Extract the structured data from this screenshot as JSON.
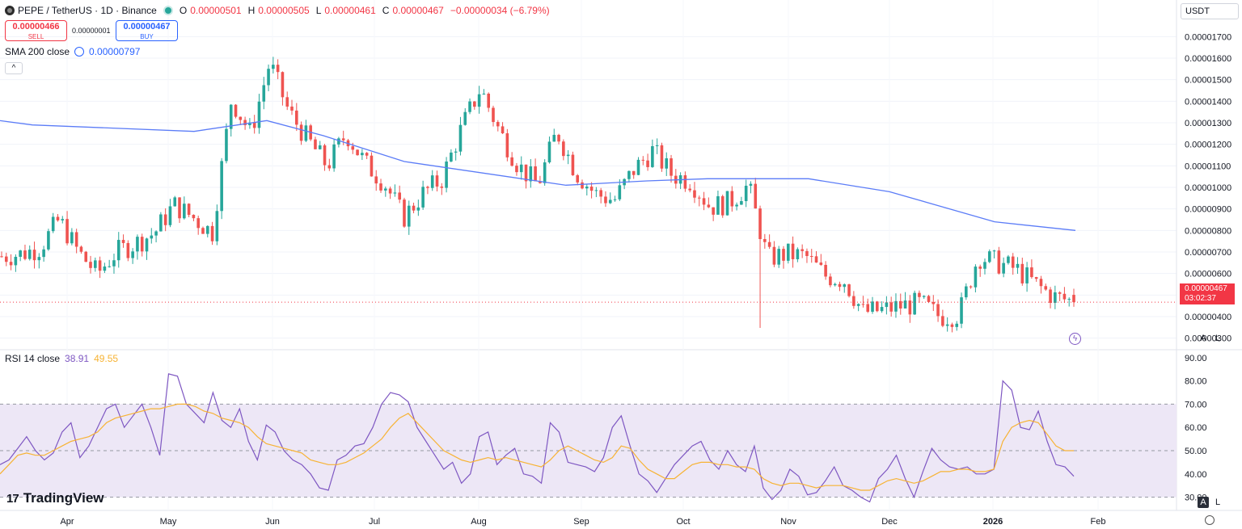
{
  "header": {
    "symbol": "PEPE / TetherUS · 1D · Binance",
    "open_label": "O",
    "open": "0.00000501",
    "high_label": "H",
    "high": "0.00000505",
    "low_label": "L",
    "low": "0.00000461",
    "close_label": "C",
    "close": "0.00000467",
    "change": "−0.00000034 (−6.79%)"
  },
  "trade": {
    "sell_price": "0.00000466",
    "sell_label": "SELL",
    "spread": "0.00000001",
    "buy_price": "0.00000467",
    "buy_label": "BUY"
  },
  "indicators": {
    "sma_label": "SMA 200 close",
    "sma_value": "0.00000797",
    "rsi_label": "RSI 14 close",
    "rsi_value": "38.91",
    "rsi_ma_value": "49.55"
  },
  "currency": "USDT",
  "last_price_tag": {
    "price": "0.00000467",
    "countdown": "03:02:37"
  },
  "scale_buttons": {
    "auto": "A",
    "log": "L"
  },
  "brand": "TradingView",
  "colors": {
    "up": "#26a69a",
    "down": "#ef5350",
    "sma": "#5b7cf7",
    "rsi": "#7e57c2",
    "rsi_ma": "#f7b334",
    "rsi_band": "#ede7f6"
  },
  "chart_data": [
    {
      "type": "candlestick",
      "price_axis_ticks": [
        "0.00001700",
        "0.00001600",
        "0.00001500",
        "0.00001400",
        "0.00001300",
        "0.00001200",
        "0.00001100",
        "0.00001000",
        "0.00000900",
        "0.00000800",
        "0.00000700",
        "0.00000600",
        "0.00000500",
        "0.00000400",
        "0.00000300"
      ],
      "time_axis_ticks": [
        "Apr",
        "May",
        "Jun",
        "Jul",
        "Aug",
        "Sep",
        "Oct",
        "Nov",
        "Dec",
        "2026",
        "Feb"
      ],
      "ylim": [
        2.5e-06,
        1.78e-05
      ],
      "last_price": 4.67e-06,
      "price_path": [
        [
          6.7e-06,
          6.8e-06
        ],
        [
          7.1e-06,
          6.9e-06
        ],
        [
          7.4e-06,
          7.2e-06
        ],
        [
          7.8e-06,
          8.5e-06
        ],
        [
          7.2e-06,
          7e-06
        ],
        [
          6.6e-06,
          6e-06
        ],
        [
          6.8e-06,
          7e-06
        ],
        [
          7.2e-06,
          7.4e-06
        ],
        [
          7.6e-06,
          7.9e-06
        ],
        [
          9e-06,
          9.2e-06
        ],
        [
          8.9e-06,
          8.6e-06
        ],
        [
          8e-06,
          7.9e-06
        ],
        [
          1.3e-05,
          1.41e-05
        ],
        [
          1.36e-05,
          1.25e-05
        ],
        [
          1.33e-05,
          1.58e-05
        ],
        [
          1.4e-05,
          1.35e-05
        ],
        [
          1.4e-05,
          1.22e-05
        ],
        [
          1.26e-05,
          1.1e-05
        ],
        [
          1.24e-05,
          1.25e-05
        ],
        [
          1.22e-05,
          1.11e-05
        ],
        [
          1.06e-05,
          1.02e-05
        ],
        [
          9.2e-06,
          8.6e-06
        ],
        [
          9.5e-06,
          9.7e-06
        ],
        [
          1e-05,
          1.04e-05
        ],
        [
          1.18e-05,
          1.27e-05
        ],
        [
          1.37e-05,
          1.46e-05
        ],
        [
          1.3e-05,
          1.26e-05
        ],
        [
          1.18e-05,
          1.1e-05
        ],
        [
          1.03e-05,
          1.01e-05
        ],
        [
          1.16e-05,
          1.26e-05
        ],
        [
          1.12e-05,
          1.07e-05
        ],
        [
          1.1e-05,
          9.7e-06
        ],
        [
          9.6e-06,
          9.4e-06
        ],
        [
          1e-05,
          1.08e-05
        ],
        [
          1.19e-05,
          1.17e-05
        ],
        [
          1.1e-05,
          1.06e-05
        ],
        [
          1.05e-05,
          1.03e-05
        ],
        [
          9.9e-06,
          9.1e-06
        ],
        [
          9.3e-06,
          9.3e-06
        ],
        [
          1.04e-05,
          1.01e-05
        ],
        [
          8.4e-06,
          6.7e-06
        ],
        [
          7.2e-06,
          6.9e-06
        ],
        [
          7.4e-06,
          6.8e-06
        ],
        [
          6.5e-06,
          5.9e-06
        ],
        [
          6.4e-06,
          5.7e-06
        ],
        [
          5.1e-06,
          4.2e-06
        ],
        [
          4.7e-06,
          4.3e-06
        ],
        [
          4.8e-06,
          4.5e-06
        ],
        [
          5e-06,
          4.6e-06
        ],
        [
          4.4e-06,
          4e-06
        ],
        [
          4.2e-06,
          4.1e-06
        ],
        [
          4.6e-06,
          6.8e-06
        ],
        [
          7.2e-06,
          6.5e-06
        ],
        [
          5.8e-06,
          6.2e-06
        ],
        [
          6.6e-06,
          5.5e-06
        ],
        [
          5.2e-06,
          4.9e-06
        ],
        [
          5e-06,
          4.7e-06
        ]
      ],
      "sma_200": [
        [
          0,
          1.31e-05
        ],
        [
          40,
          1.29e-05
        ],
        [
          240,
          1.26e-05
        ],
        [
          330,
          1.31e-05
        ],
        [
          400,
          1.24e-05
        ],
        [
          500,
          1.12e-05
        ],
        [
          700,
          1.01e-05
        ],
        [
          800,
          1.03e-05
        ],
        [
          875,
          1.04e-05
        ],
        [
          1000,
          1.04e-05
        ],
        [
          1100,
          9.8e-06
        ],
        [
          1230,
          8.4e-06
        ],
        [
          1330,
          8e-06
        ]
      ]
    },
    {
      "type": "line",
      "title": "RSI 14 close",
      "rsi_axis_ticks": [
        "90.00",
        "80.00",
        "70.00",
        "60.00",
        "50.00",
        "40.00",
        "30.00"
      ],
      "ylim": [
        25,
        92
      ],
      "band": [
        30,
        70
      ],
      "midline": 50,
      "series": [
        {
          "name": "RSI",
          "values": [
            44,
            46,
            51,
            56,
            50,
            46,
            49,
            58,
            62,
            47,
            52,
            60,
            68,
            70,
            60,
            65,
            70,
            60,
            48,
            83,
            82,
            70,
            66,
            62,
            75,
            63,
            60,
            68,
            54,
            46,
            61,
            58,
            50,
            46,
            44,
            40,
            34,
            33,
            46,
            48,
            52,
            53,
            60,
            70,
            75,
            74,
            71,
            60,
            54,
            48,
            42,
            45,
            36,
            40,
            56,
            58,
            44,
            48,
            51,
            40,
            39,
            36,
            62,
            58,
            45,
            44,
            43,
            41,
            47,
            60,
            65,
            52,
            40,
            37,
            32,
            38,
            44,
            48,
            52,
            54,
            46,
            42,
            50,
            44,
            41,
            52,
            34,
            29,
            33,
            42,
            39,
            31,
            32,
            37,
            43,
            35,
            33,
            30,
            28,
            38,
            42,
            48,
            38,
            30,
            41,
            51,
            46,
            43,
            42,
            43,
            40,
            40,
            42,
            80,
            76,
            60,
            59,
            67,
            54,
            44,
            43,
            39
          ]
        },
        {
          "name": "RSI MA",
          "values": [
            40,
            44,
            48,
            49,
            48,
            48,
            50,
            52,
            54,
            55,
            56,
            58,
            62,
            64,
            65,
            66,
            67,
            68,
            68,
            69,
            70,
            70,
            69,
            67,
            66,
            64,
            63,
            62,
            60,
            56,
            53,
            52,
            51,
            50,
            49,
            46,
            45,
            44,
            44,
            45,
            47,
            49,
            52,
            55,
            60,
            64,
            66,
            62,
            58,
            54,
            50,
            48,
            46,
            45,
            46,
            47,
            46,
            47,
            46,
            45,
            44,
            43,
            46,
            50,
            52,
            50,
            48,
            46,
            45,
            47,
            52,
            51,
            46,
            42,
            40,
            38,
            38,
            41,
            44,
            45,
            45,
            44,
            44,
            43,
            43,
            42,
            38,
            36,
            35,
            36,
            36,
            35,
            34,
            35,
            35,
            35,
            34,
            33,
            33,
            35,
            37,
            38,
            37,
            36,
            37,
            39,
            41,
            41,
            42,
            42,
            41,
            41,
            42,
            54,
            60,
            62,
            63,
            62,
            57,
            52,
            50,
            50
          ]
        }
      ]
    }
  ]
}
